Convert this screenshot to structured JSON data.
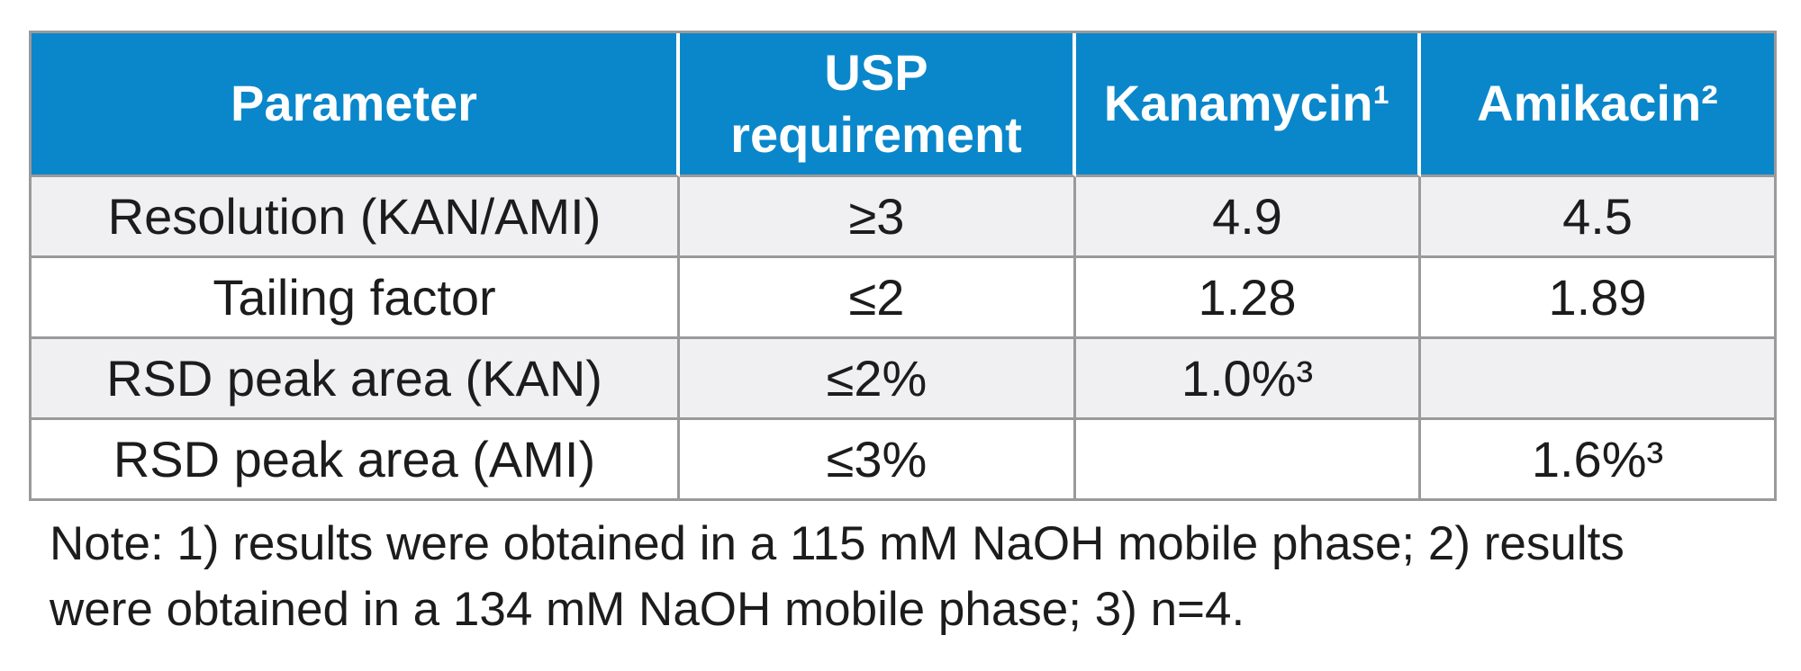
{
  "table": {
    "columns": [
      {
        "label": "Parameter"
      },
      {
        "label": "USP requirement"
      },
      {
        "label": "Kanamycin¹"
      },
      {
        "label": "Amikacin²"
      }
    ],
    "rows": [
      {
        "parameter": "Resolution (KAN/AMI)",
        "usp": "≥3",
        "kanamycin": "4.9",
        "amikacin": "4.5"
      },
      {
        "parameter": "Tailing factor",
        "usp": "≤2",
        "kanamycin": "1.28",
        "amikacin": "1.89"
      },
      {
        "parameter": "RSD peak area (KAN)",
        "usp": "≤2%",
        "kanamycin": "1.0%³",
        "amikacin": ""
      },
      {
        "parameter": "RSD peak area (AMI)",
        "usp": "≤3%",
        "kanamycin": "",
        "amikacin": "1.6%³"
      }
    ]
  },
  "note": {
    "full_text": "Note: 1) results were obtained in a 115 mM NaOH mobile phase; 2) results were obtained in a 134 mM NaOH mobile phase; 3) n=4.",
    "lines": [
      "Note: 1) results were obtained in a 115 mM NaOH mobile phase; 2) results",
      "were obtained in a 134 mM NaOH mobile phase; 3) n=4."
    ]
  },
  "colors": {
    "header_bg": "#0a87ca",
    "header_text": "#ffffff",
    "row_alt_bg": "#f0f0f2",
    "border": "#9a9a9a",
    "body_text": "#1c1c1c"
  }
}
